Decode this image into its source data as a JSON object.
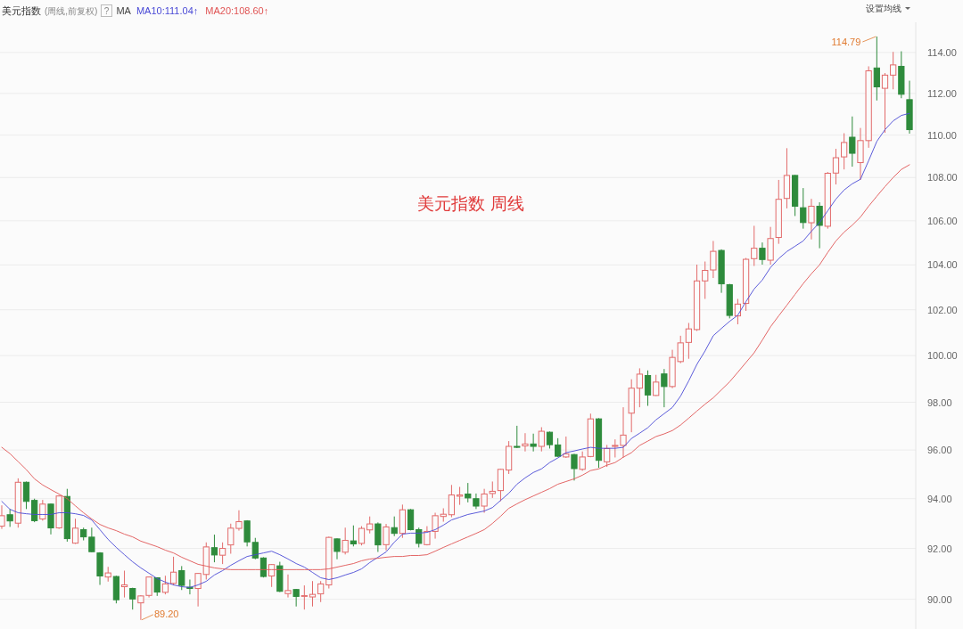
{
  "chart_data": {
    "type": "candlestick",
    "title": "美元指数",
    "subtitle": "(周线,前复权)",
    "categories": [
      null,
      null,
      null,
      null,
      null,
      null,
      null,
      null,
      null,
      null,
      null,
      null,
      null,
      null,
      null,
      null,
      null,
      null,
      null,
      null,
      null,
      null,
      null,
      null,
      null,
      null,
      null,
      null,
      null,
      null,
      null,
      null,
      null,
      null,
      null,
      null,
      null,
      null,
      null,
      null,
      null,
      null,
      null,
      null,
      null,
      null,
      null,
      null,
      null,
      null,
      null,
      null,
      null,
      null,
      null,
      null,
      null,
      null,
      null,
      null,
      null,
      null,
      null,
      null,
      null,
      null,
      null,
      null,
      null,
      null,
      null,
      null,
      null,
      null,
      null,
      null,
      null,
      null,
      null,
      null,
      null,
      null,
      null,
      null,
      null,
      null,
      null,
      null,
      null,
      null,
      null,
      null,
      null,
      null,
      null,
      null,
      null,
      null,
      null,
      null,
      null,
      null,
      null,
      null,
      null,
      null,
      null,
      null,
      null,
      null,
      null,
      null
    ],
    "ohlc": [
      [
        92.89,
        93.73,
        92.78,
        93.31
      ],
      [
        93.35,
        93.58,
        92.86,
        93.1
      ],
      [
        93.01,
        94.83,
        92.83,
        94.67
      ],
      [
        94.67,
        94.7,
        93.58,
        93.89
      ],
      [
        93.93,
        94.0,
        93.05,
        93.11
      ],
      [
        93.18,
        93.95,
        93.11,
        93.78
      ],
      [
        93.78,
        93.8,
        92.56,
        92.82
      ],
      [
        92.82,
        94.15,
        92.78,
        94.11
      ],
      [
        94.09,
        94.4,
        92.27,
        92.39
      ],
      [
        92.21,
        93.19,
        92.18,
        92.81
      ],
      [
        92.75,
        92.83,
        92.32,
        92.46
      ],
      [
        92.45,
        92.83,
        91.85,
        91.87
      ],
      [
        91.82,
        91.85,
        90.56,
        90.91
      ],
      [
        90.87,
        91.27,
        90.69,
        91.03
      ],
      [
        90.89,
        90.92,
        89.84,
        89.98
      ],
      [
        90.49,
        91.12,
        90.07,
        90.56
      ],
      [
        90.42,
        90.45,
        89.6,
        90.01
      ],
      [
        89.86,
        90.16,
        89.2,
        90.13
      ],
      [
        90.15,
        90.89,
        90.07,
        90.87
      ],
      [
        90.84,
        90.86,
        90.13,
        90.28
      ],
      [
        90.27,
        90.92,
        90.19,
        90.6
      ],
      [
        90.62,
        91.67,
        90.54,
        91.06
      ],
      [
        91.12,
        91.3,
        90.36,
        90.54
      ],
      [
        90.47,
        90.77,
        90.19,
        90.42
      ],
      [
        90.42,
        91.03,
        89.72,
        91.01
      ],
      [
        90.97,
        92.24,
        90.77,
        92.06
      ],
      [
        92.03,
        92.55,
        91.45,
        91.74
      ],
      [
        91.73,
        92.24,
        91.38,
        92.0
      ],
      [
        92.14,
        92.99,
        91.79,
        92.81
      ],
      [
        92.8,
        93.53,
        92.71,
        93.07
      ],
      [
        93.1,
        93.13,
        92.08,
        92.26
      ],
      [
        92.24,
        92.42,
        91.57,
        91.62
      ],
      [
        91.62,
        91.65,
        90.85,
        90.89
      ],
      [
        90.91,
        91.38,
        90.48,
        91.36
      ],
      [
        91.31,
        91.47,
        90.28,
        90.31
      ],
      [
        90.22,
        90.97,
        90.07,
        90.34
      ],
      [
        90.38,
        90.4,
        89.72,
        90.11
      ],
      [
        90.12,
        90.54,
        89.6,
        90.14
      ],
      [
        90.09,
        90.71,
        89.72,
        90.19
      ],
      [
        90.21,
        90.71,
        89.89,
        90.6
      ],
      [
        90.56,
        92.47,
        90.42,
        92.44
      ],
      [
        92.38,
        92.4,
        91.57,
        91.88
      ],
      [
        91.85,
        92.83,
        91.76,
        92.32
      ],
      [
        92.3,
        92.92,
        92.08,
        92.18
      ],
      [
        92.2,
        92.89,
        92.12,
        92.8
      ],
      [
        92.74,
        93.28,
        92.6,
        92.98
      ],
      [
        92.98,
        93.04,
        91.86,
        92.14
      ],
      [
        92.15,
        92.98,
        91.92,
        92.86
      ],
      [
        92.83,
        93.28,
        92.49,
        92.6
      ],
      [
        92.6,
        93.76,
        92.42,
        93.55
      ],
      [
        93.55,
        93.58,
        92.72,
        92.75
      ],
      [
        92.75,
        92.83,
        92.04,
        92.2
      ],
      [
        92.15,
        92.89,
        92.12,
        92.68
      ],
      [
        92.68,
        93.43,
        92.39,
        93.31
      ],
      [
        93.28,
        93.61,
        93.07,
        93.37
      ],
      [
        93.35,
        94.56,
        93.25,
        94.15
      ],
      [
        94.1,
        94.48,
        93.75,
        94.15
      ],
      [
        94.19,
        94.64,
        93.85,
        94.03
      ],
      [
        94.0,
        94.21,
        93.58,
        93.7
      ],
      [
        93.7,
        94.4,
        93.43,
        94.19
      ],
      [
        94.21,
        94.7,
        94.03,
        94.3
      ],
      [
        94.33,
        95.22,
        93.9,
        95.2
      ],
      [
        95.17,
        96.37,
        95.01,
        96.15
      ],
      [
        96.15,
        97.01,
        96.08,
        96.11
      ],
      [
        96.17,
        96.7,
        95.94,
        96.25
      ],
      [
        96.25,
        96.68,
        95.94,
        96.15
      ],
      [
        96.15,
        96.95,
        95.94,
        96.78
      ],
      [
        96.74,
        96.77,
        96.06,
        96.22
      ],
      [
        96.21,
        96.49,
        95.71,
        95.74
      ],
      [
        95.71,
        96.56,
        95.67,
        95.84
      ],
      [
        95.81,
        95.84,
        94.74,
        95.23
      ],
      [
        95.2,
        95.94,
        95.14,
        95.71
      ],
      [
        95.73,
        97.52,
        95.7,
        97.3
      ],
      [
        97.3,
        97.33,
        95.26,
        95.57
      ],
      [
        95.51,
        96.21,
        95.3,
        96.06
      ],
      [
        96.15,
        96.44,
        95.69,
        96.19
      ],
      [
        96.19,
        97.79,
        95.69,
        96.62
      ],
      [
        97.54,
        98.98,
        96.74,
        98.6
      ],
      [
        98.6,
        99.45,
        97.79,
        99.2
      ],
      [
        99.14,
        99.36,
        97.85,
        98.31
      ],
      [
        98.29,
        99.17,
        98.27,
        98.86
      ],
      [
        99.21,
        99.42,
        97.79,
        98.67
      ],
      [
        98.67,
        100.25,
        98.6,
        99.92
      ],
      [
        99.74,
        100.86,
        99.67,
        100.55
      ],
      [
        100.57,
        101.42,
        99.86,
        101.16
      ],
      [
        101.13,
        104.01,
        101.07,
        103.28
      ],
      [
        103.28,
        104.15,
        102.48,
        103.75
      ],
      [
        103.77,
        105.08,
        103.41,
        104.61
      ],
      [
        104.65,
        104.7,
        102.75,
        103.15
      ],
      [
        103.11,
        103.15,
        101.62,
        101.75
      ],
      [
        101.73,
        102.48,
        101.36,
        102.25
      ],
      [
        102.28,
        104.31,
        101.95,
        104.25
      ],
      [
        104.28,
        105.77,
        103.95,
        104.75
      ],
      [
        104.75,
        105.01,
        104.01,
        104.24
      ],
      [
        104.21,
        105.72,
        104.01,
        105.19
      ],
      [
        105.24,
        107.89,
        104.95,
        106.99
      ],
      [
        107.03,
        109.38,
        106.57,
        108.1
      ],
      [
        108.1,
        108.12,
        106.22,
        106.67
      ],
      [
        106.6,
        107.51,
        105.64,
        105.92
      ],
      [
        105.91,
        107.01,
        105.15,
        106.67
      ],
      [
        106.67,
        106.85,
        104.75,
        105.79
      ],
      [
        105.75,
        108.26,
        105.64,
        108.2
      ],
      [
        108.21,
        109.35,
        107.68,
        108.93
      ],
      [
        108.97,
        110.09,
        108.38,
        109.65
      ],
      [
        109.9,
        110.89,
        108.51,
        109.14
      ],
      [
        108.7,
        110.34,
        107.89,
        109.74
      ],
      [
        109.74,
        113.32,
        109.4,
        113.1
      ],
      [
        113.24,
        114.79,
        111.66,
        112.32
      ],
      [
        112.25,
        112.99,
        110.11,
        112.89
      ],
      [
        112.89,
        114.03,
        112.2,
        113.39
      ],
      [
        113.32,
        114.06,
        111.77,
        111.96
      ],
      [
        111.7,
        112.62,
        110.07,
        110.26
      ]
    ],
    "colors": [
      "#e26a6a",
      "#2e8b3c",
      "#e26a6a",
      "#2e8b3c",
      "#2e8b3c",
      "#e26a6a",
      "#2e8b3c",
      "#e26a6a",
      "#2e8b3c",
      "#e26a6a",
      "#2e8b3c",
      "#2e8b3c",
      "#2e8b3c",
      "#e26a6a",
      "#2e8b3c",
      "#e26a6a",
      "#2e8b3c",
      "#e26a6a",
      "#e26a6a",
      "#2e8b3c",
      "#e26a6a",
      "#e26a6a",
      "#2e8b3c",
      "#2e8b3c",
      "#e26a6a",
      "#e26a6a",
      "#2e8b3c",
      "#e26a6a",
      "#e26a6a",
      "#e26a6a",
      "#2e8b3c",
      "#2e8b3c",
      "#2e8b3c",
      "#e26a6a",
      "#2e8b3c",
      "#e26a6a",
      "#2e8b3c",
      "#e26a6a",
      "#e26a6a",
      "#e26a6a",
      "#e26a6a",
      "#2e8b3c",
      "#e26a6a",
      "#2e8b3c",
      "#e26a6a",
      "#e26a6a",
      "#2e8b3c",
      "#e26a6a",
      "#2e8b3c",
      "#e26a6a",
      "#2e8b3c",
      "#2e8b3c",
      "#e26a6a",
      "#e26a6a",
      "#e26a6a",
      "#e26a6a",
      "#e26a6a",
      "#2e8b3c",
      "#2e8b3c",
      "#e26a6a",
      "#e26a6a",
      "#e26a6a",
      "#e26a6a",
      "#2e8b3c",
      "#e26a6a",
      "#2e8b3c",
      "#e26a6a",
      "#2e8b3c",
      "#2e8b3c",
      "#e26a6a",
      "#2e8b3c",
      "#e26a6a",
      "#e26a6a",
      "#2e8b3c",
      "#e26a6a",
      "#e26a6a",
      "#e26a6a",
      "#e26a6a",
      "#e26a6a",
      "#2e8b3c",
      "#e26a6a",
      "#2e8b3c",
      "#e26a6a",
      "#e26a6a",
      "#e26a6a",
      "#e26a6a",
      "#e26a6a",
      "#e26a6a",
      "#2e8b3c",
      "#2e8b3c",
      "#e26a6a",
      "#e26a6a",
      "#e26a6a",
      "#2e8b3c",
      "#e26a6a",
      "#e26a6a",
      "#e26a6a",
      "#2e8b3c",
      "#2e8b3c",
      "#e26a6a",
      "#2e8b3c",
      "#e26a6a",
      "#e26a6a",
      "#e26a6a",
      "#2e8b3c",
      "#e26a6a",
      "#e26a6a",
      "#2e8b3c",
      "#e26a6a",
      "#e26a6a",
      "#2e8b3c",
      "#2e8b3c"
    ],
    "series": [
      {
        "name": "MA10:111.04↑",
        "type": "line",
        "color": "#4a4ad6",
        "values": [
          93.89,
          93.57,
          93.43,
          93.39,
          93.36,
          93.36,
          93.36,
          93.43,
          93.43,
          93.39,
          93.32,
          93.14,
          92.75,
          92.36,
          92.04,
          91.75,
          91.47,
          91.23,
          91.02,
          90.81,
          90.67,
          90.56,
          90.49,
          90.46,
          90.56,
          90.7,
          90.95,
          91.12,
          91.33,
          91.51,
          91.68,
          91.75,
          91.82,
          91.89,
          91.75,
          91.58,
          91.4,
          91.26,
          91.05,
          90.84,
          90.77,
          90.84,
          90.95,
          91.05,
          91.19,
          91.44,
          91.65,
          91.86,
          92.25,
          92.57,
          92.61,
          92.61,
          92.64,
          92.75,
          92.93,
          93.14,
          93.25,
          93.36,
          93.43,
          93.5,
          93.64,
          93.93,
          94.22,
          94.59,
          94.85,
          95.07,
          95.22,
          95.48,
          95.67,
          95.89,
          95.96,
          96.04,
          96.11,
          96.07,
          96.07,
          96.07,
          96.11,
          96.48,
          96.7,
          96.93,
          97.26,
          97.52,
          97.78,
          98.26,
          98.91,
          99.62,
          100.2,
          100.86,
          101.18,
          101.49,
          101.76,
          102.36,
          102.92,
          103.32,
          103.88,
          104.28,
          104.6,
          104.84,
          105.08,
          105.52,
          105.92,
          106.46,
          107.0,
          107.42,
          107.71,
          107.92,
          108.79,
          109.7,
          110.26,
          110.68,
          110.94,
          111.04
        ]
      },
      {
        "name": "MA20:108.60↑",
        "type": "line",
        "color": "#e05555",
        "values": [
          96.11,
          95.85,
          95.52,
          95.19,
          94.81,
          94.56,
          94.37,
          94.19,
          94.0,
          93.71,
          93.43,
          93.18,
          92.96,
          92.82,
          92.71,
          92.57,
          92.46,
          92.29,
          92.18,
          92.07,
          91.93,
          91.82,
          91.65,
          91.51,
          91.37,
          91.3,
          91.23,
          91.19,
          91.16,
          91.16,
          91.16,
          91.16,
          91.16,
          91.16,
          91.16,
          91.16,
          91.16,
          91.16,
          91.16,
          91.16,
          91.19,
          91.26,
          91.33,
          91.4,
          91.51,
          91.58,
          91.61,
          91.65,
          91.68,
          91.68,
          91.72,
          91.72,
          91.75,
          91.89,
          92.04,
          92.18,
          92.32,
          92.46,
          92.6,
          92.75,
          93.0,
          93.29,
          93.61,
          93.79,
          93.96,
          94.11,
          94.26,
          94.41,
          94.59,
          94.7,
          94.81,
          94.96,
          95.15,
          95.22,
          95.37,
          95.48,
          95.7,
          95.89,
          96.19,
          96.37,
          96.56,
          96.67,
          96.81,
          97.04,
          97.33,
          97.63,
          97.92,
          98.19,
          98.53,
          98.87,
          99.28,
          99.7,
          100.12,
          100.67,
          101.25,
          101.73,
          102.2,
          102.68,
          103.16,
          103.6,
          104.0,
          104.56,
          105.08,
          105.48,
          105.8,
          106.17,
          106.67,
          107.13,
          107.58,
          108.0,
          108.38,
          108.6
        ]
      }
    ],
    "log": "y",
    "ylim": [
      88.85,
      115.5
    ],
    "yticks": [
      {
        "value": 90,
        "label": "90.00"
      },
      {
        "value": 92,
        "label": "92.00"
      },
      {
        "value": 94,
        "label": "94.00"
      },
      {
        "value": 96,
        "label": "96.00"
      },
      {
        "value": 98,
        "label": "98.00"
      },
      {
        "value": 100,
        "label": "100.00"
      },
      {
        "value": 102,
        "label": "102.00"
      },
      {
        "value": 104,
        "label": "104.00"
      },
      {
        "value": 106,
        "label": "106.00"
      },
      {
        "value": 108,
        "label": "108.00"
      },
      {
        "value": 110,
        "label": "110.00"
      },
      {
        "value": 112,
        "label": "112.00"
      },
      {
        "value": 114,
        "label": "114.00"
      }
    ],
    "grid": "y",
    "legend": "top left",
    "tick_labels": "y",
    "annotations": [
      "?",
      "MA",
      "设置均线",
      "美元指数  周线",
      "114.79",
      "89.20"
    ]
  }
}
